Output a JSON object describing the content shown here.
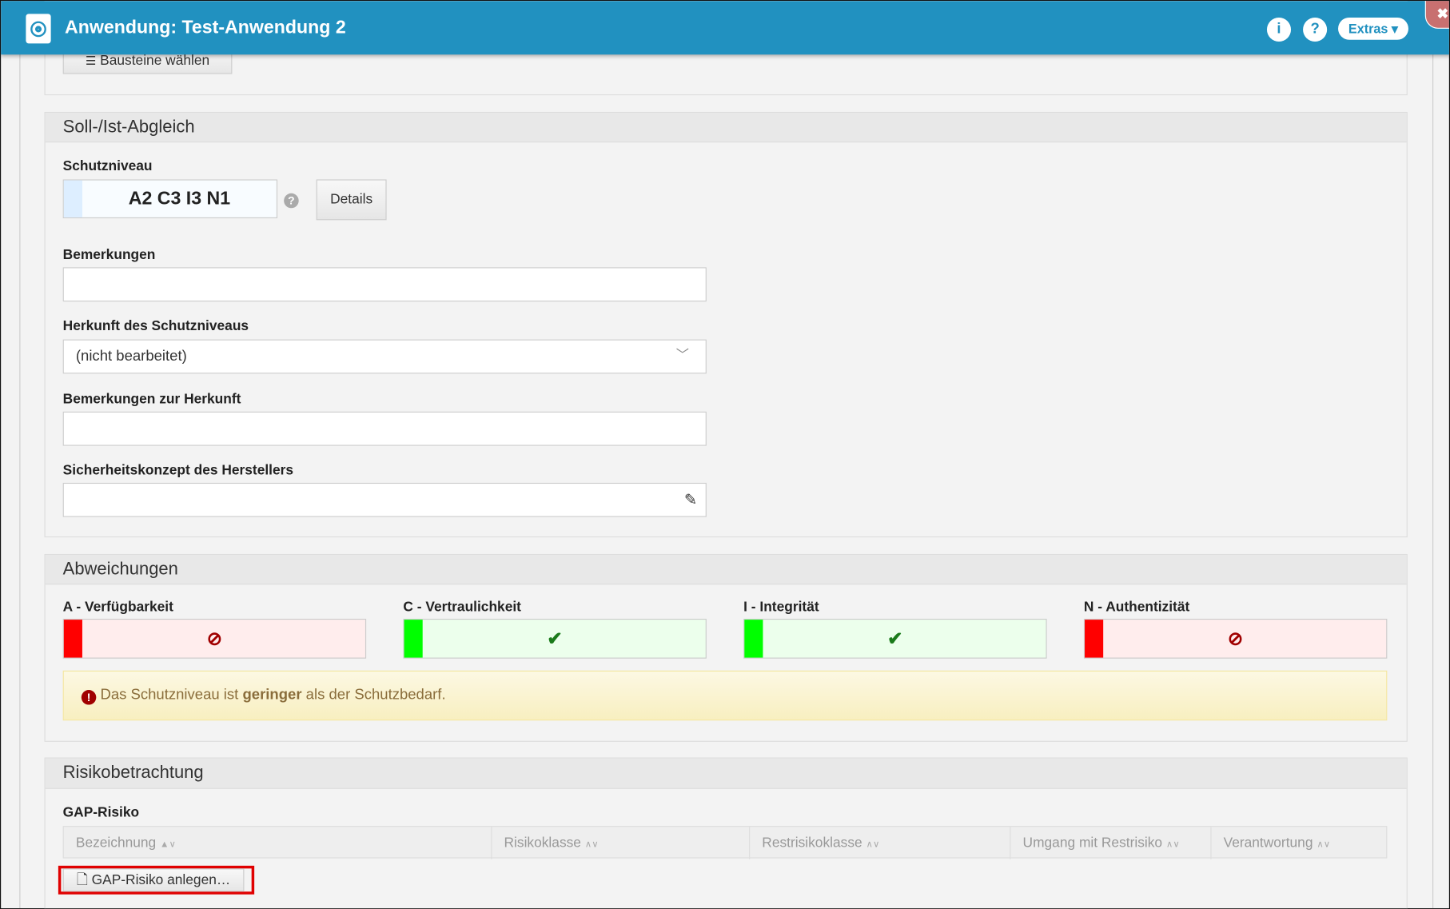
{
  "header": {
    "title": "Anwendung: Test-Anwendung 2",
    "info_icon": "i",
    "help_icon": "?",
    "extras_label": "Extras ▾",
    "close_icon": "✖"
  },
  "top_panel": {
    "bausteine_button": "Bausteine wählen"
  },
  "soll_ist": {
    "heading": "Soll-/Ist-Abgleich",
    "schutzniveau_label": "Schutzniveau",
    "schutzniveau_value": "A2 C3 I3 N1",
    "details_button": "Details",
    "bemerkungen_label": "Bemerkungen",
    "bemerkungen_value": "",
    "herkunft_label": "Herkunft des Schutzniveaus",
    "herkunft_value": "(nicht bearbeitet)",
    "bemerkungen_herkunft_label": "Bemerkungen zur Herkunft",
    "bemerkungen_herkunft_value": "",
    "sicherheitskonzept_label": "Sicherheitskonzept des Herstellers",
    "sicherheitskonzept_value": ""
  },
  "abweichungen": {
    "heading": "Abweichungen",
    "items": [
      {
        "label": "A - Verfügbarkeit",
        "status": "fail",
        "icon": "⊘",
        "bar_color": "#ff0000",
        "bg_color": "#ffeded",
        "icon_color": "#a00000"
      },
      {
        "label": "C - Vertraulichkeit",
        "status": "ok",
        "icon": "✔",
        "bar_color": "#00ff00",
        "bg_color": "#ecffec",
        "icon_color": "#1a7a1a"
      },
      {
        "label": "I - Integrität",
        "status": "ok",
        "icon": "✔",
        "bar_color": "#00ff00",
        "bg_color": "#ecffec",
        "icon_color": "#1a7a1a"
      },
      {
        "label": "N - Authentizität",
        "status": "fail",
        "icon": "⊘",
        "bar_color": "#ff0000",
        "bg_color": "#ffeded",
        "icon_color": "#a00000"
      }
    ],
    "alert": {
      "pre": "Das Schutzniveau ist ",
      "bold": "geringer",
      "post": " als der Schutzbedarf."
    }
  },
  "risiko": {
    "heading": "Risikobetrachtung",
    "gap_label": "GAP-Risiko",
    "columns": [
      "Bezeichnung",
      "Risikoklasse",
      "Restrisikoklasse",
      "Umgang mit Restrisiko",
      "Verantwortung"
    ],
    "create_button": "GAP-Risiko anlegen…"
  }
}
